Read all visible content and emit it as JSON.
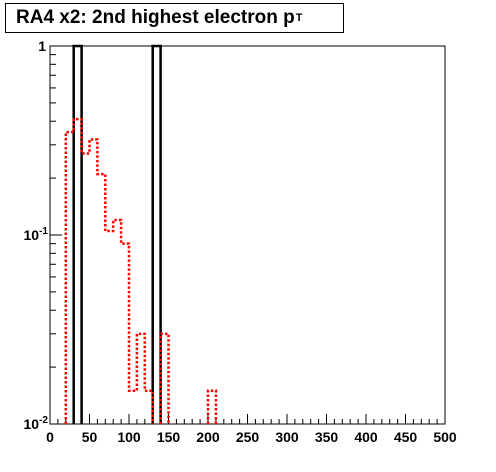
{
  "title": {
    "main": "RA4 x2: 2nd highest electron p",
    "sub": "T"
  },
  "chart_data": {
    "type": "histogram",
    "title": "RA4 x2: 2nd highest electron pT",
    "x_range": [
      0,
      500
    ],
    "y_range": [
      0.01,
      1
    ],
    "y_scale": "log",
    "bin_width": 10,
    "x_ticks": [
      "0",
      "50",
      "100",
      "150",
      "200",
      "250",
      "300",
      "350",
      "400",
      "450",
      "500"
    ],
    "y_ticks": [
      {
        "value": 1,
        "base": "1",
        "exp": ""
      },
      {
        "value": 0.1,
        "base": "10",
        "exp": "-1"
      },
      {
        "value": 0.01,
        "base": "10",
        "exp": "-2"
      }
    ],
    "series": [
      {
        "style": "solid",
        "color": "#000000",
        "bins": [
          {
            "x0": 30,
            "x1": 40,
            "y": 1.0
          },
          {
            "x0": 130,
            "x1": 140,
            "y": 1.0
          }
        ]
      },
      {
        "style": "dotted",
        "color": "#ff0000",
        "bins": [
          {
            "x0": 20,
            "x1": 30,
            "y": 0.35
          },
          {
            "x0": 30,
            "x1": 40,
            "y": 0.41
          },
          {
            "x0": 40,
            "x1": 50,
            "y": 0.27
          },
          {
            "x0": 50,
            "x1": 60,
            "y": 0.32
          },
          {
            "x0": 60,
            "x1": 70,
            "y": 0.21
          },
          {
            "x0": 70,
            "x1": 80,
            "y": 0.105
          },
          {
            "x0": 80,
            "x1": 90,
            "y": 0.12
          },
          {
            "x0": 90,
            "x1": 100,
            "y": 0.09
          },
          {
            "x0": 100,
            "x1": 110,
            "y": 0.015
          },
          {
            "x0": 110,
            "x1": 120,
            "y": 0.03
          },
          {
            "x0": 120,
            "x1": 130,
            "y": 0.015
          },
          {
            "x0": 140,
            "x1": 150,
            "y": 0.03
          },
          {
            "x0": 200,
            "x1": 210,
            "y": 0.015
          }
        ]
      }
    ]
  }
}
